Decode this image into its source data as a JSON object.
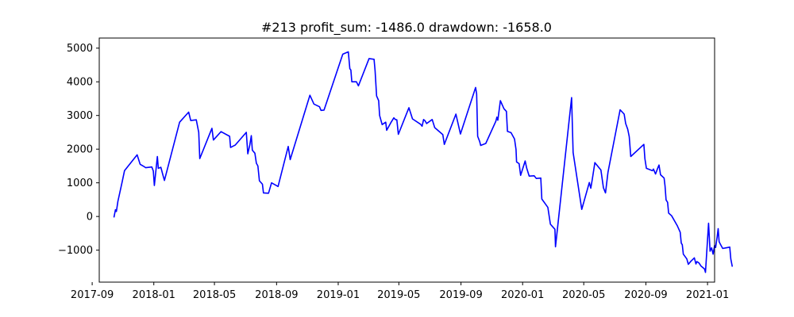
{
  "chart_data": {
    "type": "line",
    "title": "#213   profit_sum: -1486.0 drawdown: -1658.0",
    "xlabel": "",
    "ylabel": "",
    "x_domain": [
      "2017-09-15",
      "2021-01-15"
    ],
    "ylim": [
      -1950,
      5300
    ],
    "grid": false,
    "x_ticks": [
      {
        "date": "2017-09-01",
        "label": "2017-09"
      },
      {
        "date": "2018-01-01",
        "label": "2018-01"
      },
      {
        "date": "2018-05-01",
        "label": "2018-05"
      },
      {
        "date": "2018-09-01",
        "label": "2018-09"
      },
      {
        "date": "2019-01-01",
        "label": "2019-01"
      },
      {
        "date": "2019-05-01",
        "label": "2019-05"
      },
      {
        "date": "2019-09-01",
        "label": "2019-09"
      },
      {
        "date": "2020-01-01",
        "label": "2020-01"
      },
      {
        "date": "2020-05-01",
        "label": "2020-05"
      },
      {
        "date": "2020-09-01",
        "label": "2020-09"
      },
      {
        "date": "2021-01-01",
        "label": "2021-01"
      }
    ],
    "y_ticks": [
      {
        "value": -1000,
        "label": "−1000"
      },
      {
        "value": 0,
        "label": "0"
      },
      {
        "value": 1000,
        "label": "1000"
      },
      {
        "value": 2000,
        "label": "2000"
      },
      {
        "value": 3000,
        "label": "3000"
      },
      {
        "value": 4000,
        "label": "4000"
      },
      {
        "value": 5000,
        "label": "5000"
      }
    ],
    "series": [
      {
        "color": "#0000ff",
        "points": [
          [
            "2017-10-14",
            -30
          ],
          [
            "2017-10-17",
            200
          ],
          [
            "2017-10-19",
            150
          ],
          [
            "2017-10-22",
            450
          ],
          [
            "2017-10-30",
            1000
          ],
          [
            "2017-11-04",
            1360
          ],
          [
            "2017-11-29",
            1830
          ],
          [
            "2017-12-05",
            1550
          ],
          [
            "2017-12-12",
            1490
          ],
          [
            "2017-12-16",
            1450
          ],
          [
            "2017-12-28",
            1470
          ],
          [
            "2017-12-31",
            1350
          ],
          [
            "2018-01-02",
            920
          ],
          [
            "2018-01-08",
            1780
          ],
          [
            "2018-01-10",
            1430
          ],
          [
            "2018-01-15",
            1460
          ],
          [
            "2018-01-19",
            1230
          ],
          [
            "2018-01-22",
            1070
          ],
          [
            "2018-02-21",
            2800
          ],
          [
            "2018-03-11",
            3100
          ],
          [
            "2018-03-15",
            2850
          ],
          [
            "2018-03-26",
            2870
          ],
          [
            "2018-03-31",
            2500
          ],
          [
            "2018-04-02",
            1720
          ],
          [
            "2018-04-26",
            2620
          ],
          [
            "2018-04-29",
            2270
          ],
          [
            "2018-05-14",
            2520
          ],
          [
            "2018-05-31",
            2380
          ],
          [
            "2018-06-02",
            2050
          ],
          [
            "2018-06-11",
            2120
          ],
          [
            "2018-07-03",
            2500
          ],
          [
            "2018-07-06",
            1860
          ],
          [
            "2018-07-10",
            2120
          ],
          [
            "2018-07-13",
            2400
          ],
          [
            "2018-07-15",
            1970
          ],
          [
            "2018-07-20",
            1880
          ],
          [
            "2018-07-23",
            1580
          ],
          [
            "2018-07-26",
            1500
          ],
          [
            "2018-07-29",
            1060
          ],
          [
            "2018-08-04",
            960
          ],
          [
            "2018-08-06",
            700
          ],
          [
            "2018-08-16",
            690
          ],
          [
            "2018-08-22",
            1000
          ],
          [
            "2018-09-04",
            890
          ],
          [
            "2018-09-24",
            2080
          ],
          [
            "2018-09-28",
            1690
          ],
          [
            "2018-11-06",
            3600
          ],
          [
            "2018-11-14",
            3340
          ],
          [
            "2018-11-25",
            3260
          ],
          [
            "2018-11-28",
            3150
          ],
          [
            "2018-12-04",
            3160
          ],
          [
            "2019-01-10",
            4820
          ],
          [
            "2019-01-21",
            4890
          ],
          [
            "2019-01-24",
            4390
          ],
          [
            "2019-01-26",
            4350
          ],
          [
            "2019-01-28",
            4000
          ],
          [
            "2019-02-06",
            4000
          ],
          [
            "2019-02-10",
            3880
          ],
          [
            "2019-03-03",
            4690
          ],
          [
            "2019-03-13",
            4670
          ],
          [
            "2019-03-15",
            4330
          ],
          [
            "2019-03-18",
            3580
          ],
          [
            "2019-03-22",
            3440
          ],
          [
            "2019-03-24",
            3000
          ],
          [
            "2019-03-29",
            2730
          ],
          [
            "2019-04-05",
            2800
          ],
          [
            "2019-04-07",
            2560
          ],
          [
            "2019-04-15",
            2780
          ],
          [
            "2019-04-21",
            2930
          ],
          [
            "2019-04-24",
            2880
          ],
          [
            "2019-04-27",
            2870
          ],
          [
            "2019-04-30",
            2440
          ],
          [
            "2019-05-21",
            3230
          ],
          [
            "2019-05-28",
            2900
          ],
          [
            "2019-06-13",
            2740
          ],
          [
            "2019-06-16",
            2680
          ],
          [
            "2019-06-19",
            2880
          ],
          [
            "2019-06-22",
            2840
          ],
          [
            "2019-06-25",
            2760
          ],
          [
            "2019-07-06",
            2880
          ],
          [
            "2019-07-11",
            2640
          ],
          [
            "2019-07-27",
            2430
          ],
          [
            "2019-07-30",
            2140
          ],
          [
            "2019-08-22",
            3040
          ],
          [
            "2019-08-31",
            2450
          ],
          [
            "2019-09-30",
            3830
          ],
          [
            "2019-10-02",
            3640
          ],
          [
            "2019-10-04",
            2380
          ],
          [
            "2019-10-08",
            2230
          ],
          [
            "2019-10-10",
            2110
          ],
          [
            "2019-10-20",
            2170
          ],
          [
            "2019-11-09",
            2830
          ],
          [
            "2019-11-11",
            2950
          ],
          [
            "2019-11-13",
            2860
          ],
          [
            "2019-11-18",
            3440
          ],
          [
            "2019-11-25",
            3200
          ],
          [
            "2019-11-30",
            3120
          ],
          [
            "2019-12-02",
            2530
          ],
          [
            "2019-12-09",
            2490
          ],
          [
            "2019-12-16",
            2300
          ],
          [
            "2019-12-19",
            1990
          ],
          [
            "2019-12-20",
            1620
          ],
          [
            "2019-12-25",
            1570
          ],
          [
            "2019-12-28",
            1220
          ],
          [
            "2020-01-06",
            1650
          ],
          [
            "2020-01-09",
            1440
          ],
          [
            "2020-01-14",
            1200
          ],
          [
            "2020-01-24",
            1210
          ],
          [
            "2020-01-28",
            1130
          ],
          [
            "2020-02-06",
            1140
          ],
          [
            "2020-02-08",
            520
          ],
          [
            "2020-02-20",
            270
          ],
          [
            "2020-02-25",
            -230
          ],
          [
            "2020-03-05",
            -380
          ],
          [
            "2020-03-06",
            -900
          ],
          [
            "2020-03-09",
            -490
          ],
          [
            "2020-04-07",
            3530
          ],
          [
            "2020-04-10",
            1900
          ],
          [
            "2020-04-27",
            210
          ],
          [
            "2020-05-12",
            1010
          ],
          [
            "2020-05-15",
            840
          ],
          [
            "2020-05-18",
            1110
          ],
          [
            "2020-05-23",
            1600
          ],
          [
            "2020-06-04",
            1380
          ],
          [
            "2020-06-09",
            850
          ],
          [
            "2020-06-13",
            700
          ],
          [
            "2020-06-18",
            1310
          ],
          [
            "2020-07-12",
            3170
          ],
          [
            "2020-07-20",
            3040
          ],
          [
            "2020-07-23",
            2760
          ],
          [
            "2020-07-27",
            2590
          ],
          [
            "2020-07-30",
            2370
          ],
          [
            "2020-08-02",
            1780
          ],
          [
            "2020-08-28",
            2140
          ],
          [
            "2020-08-30",
            1720
          ],
          [
            "2020-09-02",
            1430
          ],
          [
            "2020-09-14",
            1360
          ],
          [
            "2020-09-16",
            1410
          ],
          [
            "2020-09-20",
            1260
          ],
          [
            "2020-09-24",
            1420
          ],
          [
            "2020-09-27",
            1530
          ],
          [
            "2020-09-30",
            1240
          ],
          [
            "2020-10-07",
            1140
          ],
          [
            "2020-10-09",
            900
          ],
          [
            "2020-10-11",
            490
          ],
          [
            "2020-10-14",
            420
          ],
          [
            "2020-10-16",
            100
          ],
          [
            "2020-10-22",
            20
          ],
          [
            "2020-11-02",
            -270
          ],
          [
            "2020-11-08",
            -470
          ],
          [
            "2020-11-10",
            -790
          ],
          [
            "2020-11-12",
            -840
          ],
          [
            "2020-11-14",
            -1120
          ],
          [
            "2020-11-21",
            -1260
          ],
          [
            "2020-11-24",
            -1420
          ],
          [
            "2020-11-29",
            -1330
          ],
          [
            "2020-12-06",
            -1230
          ],
          [
            "2020-12-09",
            -1410
          ],
          [
            "2020-12-11",
            -1340
          ],
          [
            "2020-12-15",
            -1380
          ],
          [
            "2020-12-19",
            -1470
          ],
          [
            "2020-12-26",
            -1560
          ],
          [
            "2020-12-28",
            -1660
          ],
          [
            "2021-01-03",
            -200
          ],
          [
            "2021-01-06",
            -1030
          ],
          [
            "2021-01-09",
            -930
          ],
          [
            "2021-01-12",
            -1120
          ],
          [
            "2021-01-15",
            -860
          ],
          [
            "2021-01-17",
            -920
          ],
          [
            "2021-01-20",
            -610
          ],
          [
            "2021-01-22",
            -360
          ],
          [
            "2021-01-24",
            -750
          ],
          [
            "2021-01-27",
            -840
          ],
          [
            "2021-01-31",
            -950
          ],
          [
            "2021-02-07",
            -930
          ],
          [
            "2021-02-14",
            -910
          ],
          [
            "2021-02-16",
            -1260
          ],
          [
            "2021-02-19",
            -1490
          ]
        ]
      }
    ]
  }
}
